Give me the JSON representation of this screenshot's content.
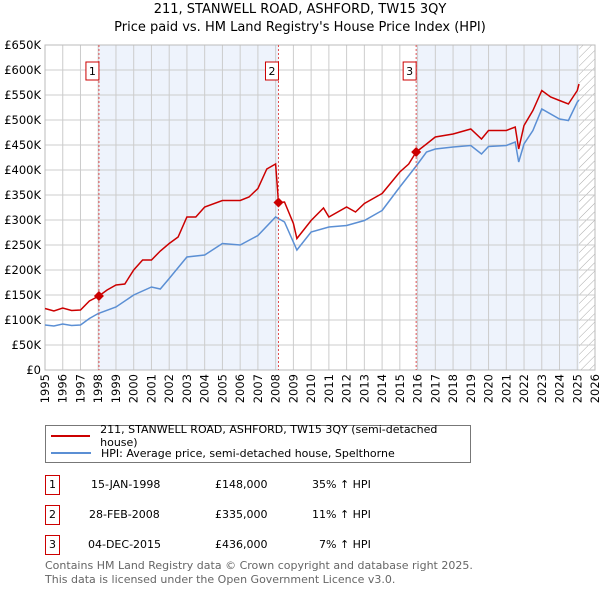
{
  "title_line1": "211, STANWELL ROAD, ASHFORD, TW15 3QY",
  "title_line2": "Price paid vs. HM Land Registry's House Price Index (HPI)",
  "legend": [
    {
      "label": "211, STANWELL ROAD, ASHFORD, TW15 3QY (semi-detached house)",
      "color": "#cc0000"
    },
    {
      "label": "HPI: Average price, semi-detached house, Spelthorne",
      "color": "#5b8fd4"
    }
  ],
  "sales": [
    {
      "num": "1",
      "date": "15-JAN-1998",
      "price": "£148,000",
      "hpi": "35% ↑ HPI"
    },
    {
      "num": "2",
      "date": "28-FEB-2008",
      "price": "£335,000",
      "hpi": "11% ↑ HPI"
    },
    {
      "num": "3",
      "date": "04-DEC-2015",
      "price": "£436,000",
      "hpi": "7% ↑ HPI"
    }
  ],
  "footer_line1": "Contains HM Land Registry data © Crown copyright and database right 2025.",
  "footer_line2": "This data is licensed under the Open Government Licence v3.0.",
  "chart_data": {
    "type": "line",
    "title": "211, STANWELL ROAD, ASHFORD, TW15 3QY",
    "subtitle": "Price paid vs. HM Land Registry's House Price Index (HPI)",
    "xlim": [
      1995,
      2026
    ],
    "ylim": [
      0,
      650000
    ],
    "x_ticks": [
      "1995",
      "1996",
      "1997",
      "1998",
      "1999",
      "2000",
      "2001",
      "2002",
      "2003",
      "2004",
      "2005",
      "2006",
      "2007",
      "2008",
      "2009",
      "2010",
      "2011",
      "2012",
      "2013",
      "2014",
      "2015",
      "2016",
      "2017",
      "2018",
      "2019",
      "2020",
      "2021",
      "2022",
      "2023",
      "2024",
      "2025",
      "2026"
    ],
    "y_ticks": [
      {
        "v": 0,
        "label": "£0"
      },
      {
        "v": 50000,
        "label": "£50K"
      },
      {
        "v": 100000,
        "label": "£100K"
      },
      {
        "v": 150000,
        "label": "£150K"
      },
      {
        "v": 200000,
        "label": "£200K"
      },
      {
        "v": 250000,
        "label": "£250K"
      },
      {
        "v": 300000,
        "label": "£300K"
      },
      {
        "v": 350000,
        "label": "£350K"
      },
      {
        "v": 400000,
        "label": "£400K"
      },
      {
        "v": 450000,
        "label": "£450K"
      },
      {
        "v": 500000,
        "label": "£500K"
      },
      {
        "v": 550000,
        "label": "£550K"
      },
      {
        "v": 600000,
        "label": "£600K"
      },
      {
        "v": 650000,
        "label": "£650K"
      }
    ],
    "grid": true,
    "forecast_hatch_from": 2025.1,
    "sale_points": [
      {
        "x": 1998.04,
        "y": 148000,
        "label": "1"
      },
      {
        "x": 2008.16,
        "y": 335000,
        "label": "2"
      },
      {
        "x": 2015.92,
        "y": 436000,
        "label": "3"
      }
    ],
    "series": [
      {
        "name": "211, STANWELL ROAD, ASHFORD, TW15 3QY (semi-detached house)",
        "color": "#cc0000",
        "x": [
          1995,
          1995.5,
          1996,
          1996.5,
          1997,
          1997.5,
          1998.04,
          1998.5,
          1999,
          1999.5,
          2000,
          2000.5,
          2001,
          2001.5,
          2002,
          2002.5,
          2003,
          2003.5,
          2004,
          2005,
          2006,
          2006.5,
          2007,
          2007.5,
          2008.0,
          2008.16,
          2008.5,
          2009,
          2009.2,
          2010,
          2010.7,
          2011,
          2012,
          2012.5,
          2013,
          2014,
          2015,
          2015.5,
          2015.92,
          2016.5,
          2017,
          2018,
          2019,
          2019.6,
          2020,
          2021,
          2021.5,
          2021.7,
          2022,
          2022.5,
          2023,
          2023.5,
          2024,
          2024.5,
          2025,
          2025.1
        ],
        "y": [
          123000,
          118000,
          124000,
          119000,
          120000,
          138000,
          148000,
          160000,
          170000,
          172000,
          200000,
          220000,
          220000,
          238000,
          253000,
          266000,
          306000,
          306000,
          326000,
          339000,
          339000,
          346000,
          363000,
          402000,
          412000,
          335000,
          336000,
          293000,
          263000,
          299000,
          324000,
          306000,
          326000,
          316000,
          333000,
          353000,
          396000,
          412000,
          436000,
          452000,
          466000,
          472000,
          482000,
          462000,
          479000,
          479000,
          486000,
          442000,
          489000,
          519000,
          559000,
          546000,
          539000,
          532000,
          559000,
          572000
        ]
      },
      {
        "name": "HPI: Average price, semi-detached house, Spelthorne",
        "color": "#5b8fd4",
        "x": [
          1995,
          1995.5,
          1996,
          1996.5,
          1997,
          1997.5,
          1998,
          1999,
          2000,
          2001,
          2001.5,
          2002,
          2003,
          2004,
          2005,
          2006,
          2007,
          2008,
          2008.5,
          2009.2,
          2010,
          2011,
          2012,
          2013,
          2014,
          2015,
          2015.92,
          2016.5,
          2017,
          2018,
          2019,
          2019.6,
          2020,
          2021,
          2021.5,
          2021.7,
          2022,
          2022.5,
          2023,
          2024,
          2024.5,
          2025,
          2025.1
        ],
        "y": [
          90000,
          88000,
          92000,
          89000,
          90000,
          103000,
          113000,
          126000,
          150000,
          166000,
          162000,
          183000,
          226000,
          230000,
          253000,
          250000,
          269000,
          306000,
          296000,
          240000,
          276000,
          286000,
          289000,
          299000,
          319000,
          366000,
          408000,
          436000,
          442000,
          446000,
          449000,
          432000,
          447000,
          449000,
          456000,
          416000,
          452000,
          479000,
          522000,
          502000,
          499000,
          536000,
          540000
        ]
      }
    ]
  }
}
